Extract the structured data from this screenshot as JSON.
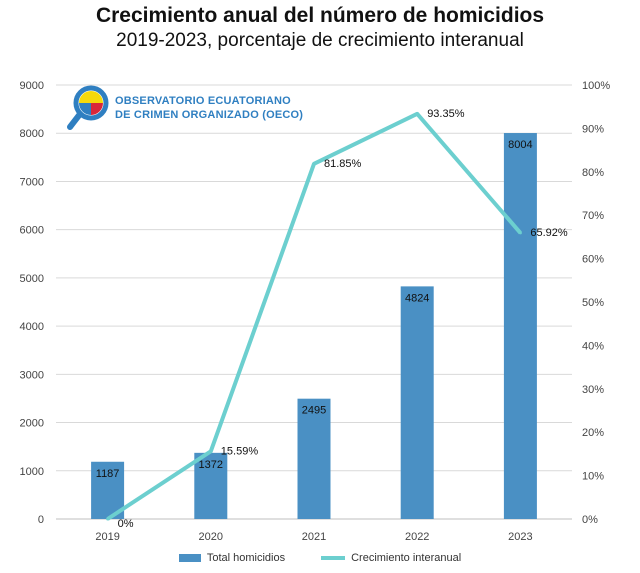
{
  "chart_data": {
    "type": "bar",
    "title": "Crecimiento anual del número de homicidios",
    "subtitle": "2019-2023, porcentaje de crecimiento interanual",
    "categories": [
      "2019",
      "2020",
      "2021",
      "2022",
      "2023"
    ],
    "series": [
      {
        "name": "Total homicidios",
        "type": "bar",
        "axis": "left",
        "values": [
          1187,
          1372,
          2495,
          4824,
          8004
        ],
        "labels": [
          "1187",
          "1372",
          "2495",
          "4824",
          "8004"
        ]
      },
      {
        "name": "Crecimiento interanual",
        "type": "line",
        "axis": "right",
        "values": [
          0,
          15.59,
          81.85,
          93.35,
          65.92
        ],
        "labels": [
          "0%",
          "15.59%",
          "81.85%",
          "93.35%",
          "65.92%"
        ]
      }
    ],
    "y_left": {
      "min": 0,
      "max": 9000,
      "step": 1000,
      "ticks": [
        "0",
        "1000",
        "2000",
        "3000",
        "4000",
        "5000",
        "6000",
        "7000",
        "8000",
        "9000"
      ]
    },
    "y_right": {
      "min": 0,
      "max": 100,
      "step": 10,
      "ticks": [
        "0%",
        "10%",
        "20%",
        "30%",
        "40%",
        "50%",
        "60%",
        "70%",
        "80%",
        "90%",
        "100%"
      ]
    },
    "grid": true,
    "legend_position": "bottom",
    "colors": {
      "bar": "#4a90c4",
      "line": "#6ccfcf",
      "grid": "#d9d9d9"
    }
  },
  "logo": {
    "line1": "OBSERVATORIO ECUATORIANO",
    "line2": "DE CRIMEN ORGANIZADO (OECO)"
  }
}
